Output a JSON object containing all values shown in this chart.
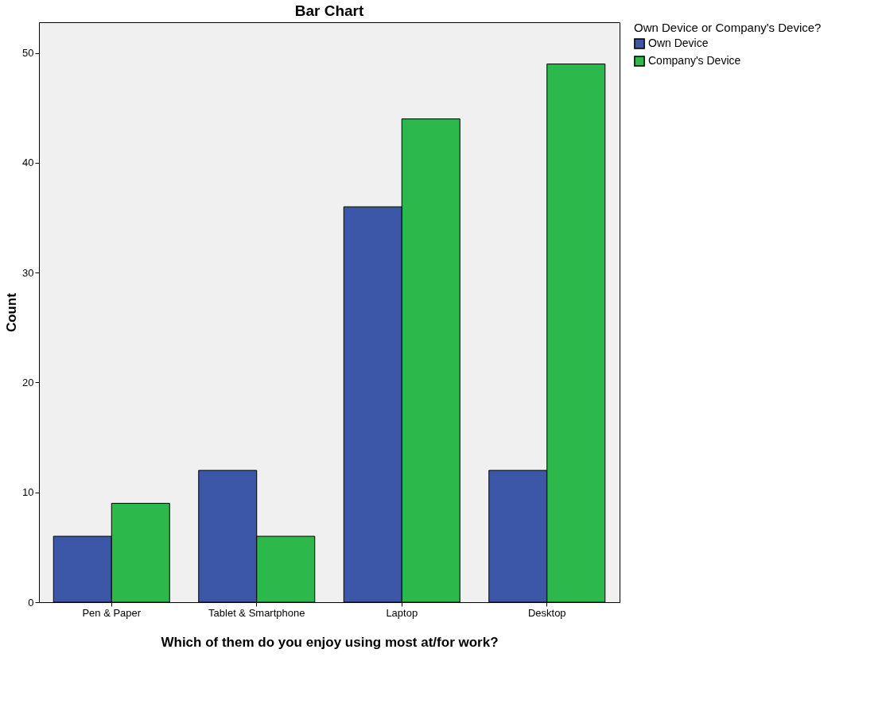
{
  "chart_data": {
    "type": "bar",
    "title": "Bar Chart",
    "xlabel": "Which of them do you enjoy using most at/for work?",
    "ylabel": "Count",
    "legend_title": "Own Device or Company's Device?",
    "categories": [
      "Pen & Paper",
      "Tablet & Smartphone",
      "Laptop",
      "Desktop"
    ],
    "series": [
      {
        "name": "Own Device",
        "color": "#3c56a8",
        "values": [
          6,
          12,
          36,
          12
        ]
      },
      {
        "name": "Company's Device",
        "color": "#2db84c",
        "values": [
          9,
          6,
          44,
          49
        ]
      }
    ],
    "ylim": [
      0,
      52.8
    ],
    "yticks": [
      0,
      10,
      20,
      30,
      40,
      50
    ],
    "grid": false,
    "legend": "top right"
  }
}
